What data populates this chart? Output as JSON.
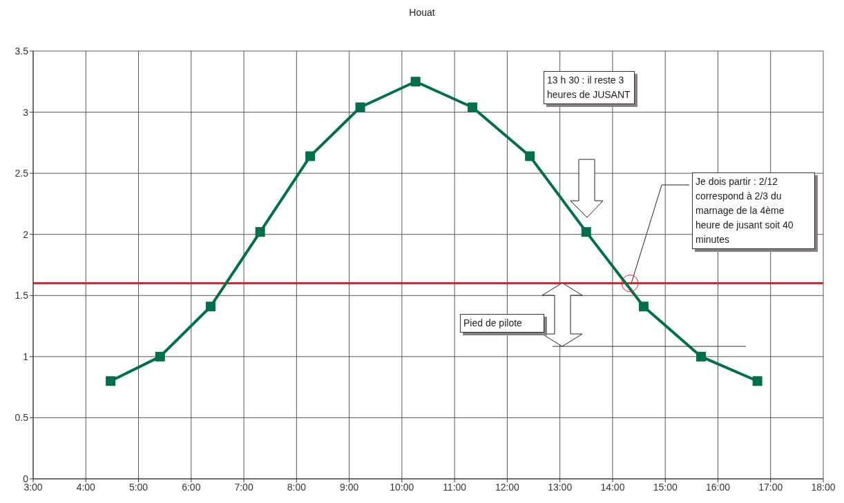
{
  "chart_data": {
    "type": "line",
    "title": "Houat",
    "x": [
      4.47,
      5.41,
      6.37,
      7.31,
      8.26,
      9.21,
      10.26,
      11.34,
      12.43,
      13.5,
      14.59,
      15.68,
      16.75
    ],
    "series": [
      {
        "color": "#00704a",
        "values": [
          0.8,
          1.0,
          1.41,
          2.02,
          2.64,
          3.04,
          3.25,
          3.04,
          2.64,
          2.02,
          1.41,
          1.0,
          0.8
        ]
      }
    ],
    "xlim": [
      3,
      18
    ],
    "xticks": [
      {
        "value": 3,
        "label": "3:00"
      },
      {
        "value": 4,
        "label": "4:00"
      },
      {
        "value": 5,
        "label": "5:00"
      },
      {
        "value": 6,
        "label": "6:00"
      },
      {
        "value": 7,
        "label": "7:00"
      },
      {
        "value": 8,
        "label": "8:00"
      },
      {
        "value": 9,
        "label": "9:00"
      },
      {
        "value": 10,
        "label": "10:00"
      },
      {
        "value": 11,
        "label": "11:00"
      },
      {
        "value": 12,
        "label": "12:00"
      },
      {
        "value": 13,
        "label": "13:00"
      },
      {
        "value": 14,
        "label": "14:00"
      },
      {
        "value": 15,
        "label": "15:00"
      },
      {
        "value": 16,
        "label": "16:00"
      },
      {
        "value": 17,
        "label": "17:00"
      },
      {
        "value": 18,
        "label": "18:00"
      }
    ],
    "ylim": [
      0,
      3.5
    ],
    "yticks": [
      0,
      0.5,
      1,
      1.5,
      2,
      2.5,
      3,
      3.5
    ],
    "ref_lines": [
      {
        "axis": "y",
        "value": 1.6,
        "color": "#ee1c25"
      }
    ],
    "annotations": [
      "13 h 30 : il reste 3 heures de JUSANT",
      {
        "text": "Je dois partir : 2/12 correspond à 2/3 du marnage de la 4ème heure de jusant soit 40 minutes",
        "x": 14.33,
        "y": 1.6
      },
      "Pied de pilote"
    ],
    "grid": true,
    "marker": "square",
    "line_style": "solid",
    "legend": false
  }
}
